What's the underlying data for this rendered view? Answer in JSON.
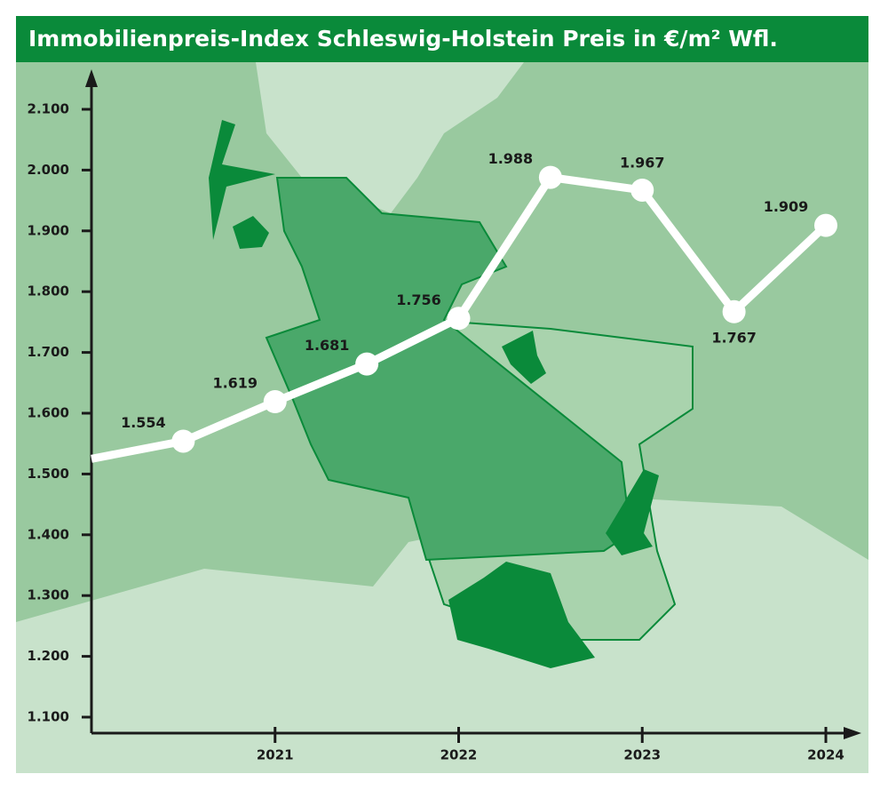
{
  "chart_data": {
    "type": "line",
    "title": "Immobilienpreis-Index Schleswig-Holstein Preis in €/m² Wfl.",
    "x": [
      2020,
      2020.5,
      2021,
      2021.5,
      2022,
      2022.5,
      2023,
      2023.5,
      2024
    ],
    "series": [
      {
        "name": "Preis in €/m² Wfl.",
        "color": "#ffffff",
        "values": [
          1525,
          1554,
          1619,
          1681,
          1756,
          1988,
          1967,
          1767,
          1909
        ],
        "value_labels": [
          null,
          "1.554",
          "1.619",
          "1.681",
          "1.756",
          "1.988",
          "1.967",
          "1.767",
          "1.909"
        ]
      }
    ],
    "xlim": [
      2020,
      2024
    ],
    "xticks": [
      2021,
      2022,
      2023,
      2024
    ],
    "ylim": [
      1100,
      2100
    ],
    "yticks": [
      {
        "value": 1100,
        "label": "1.100"
      },
      {
        "value": 1200,
        "label": "1.200"
      },
      {
        "value": 1300,
        "label": "1.300"
      },
      {
        "value": 1400,
        "label": "1.400"
      },
      {
        "value": 1500,
        "label": "1.500"
      },
      {
        "value": 1600,
        "label": "1.600"
      },
      {
        "value": 1700,
        "label": "1.700"
      },
      {
        "value": 1800,
        "label": "1.800"
      },
      {
        "value": 1900,
        "label": "1.900"
      },
      {
        "value": 2000,
        "label": "2.000"
      },
      {
        "value": 2100,
        "label": "2.100"
      }
    ]
  }
}
